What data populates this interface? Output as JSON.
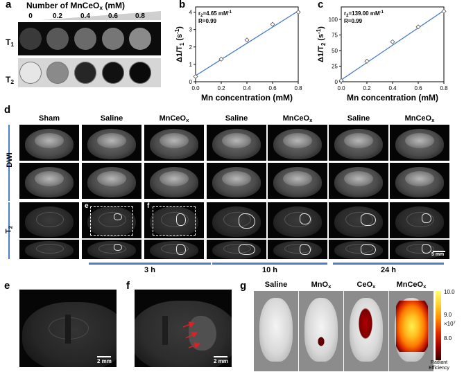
{
  "panels": {
    "a": "a",
    "b": "b",
    "c": "c",
    "d": "d",
    "e": "e",
    "f": "f",
    "g": "g"
  },
  "panel_a": {
    "title_pre": "Number of MnCeO",
    "title_sub": "x",
    "title_post": " (mM)",
    "concentrations": [
      "0",
      "0.2",
      "0.4",
      "0.6",
      "0.8"
    ],
    "t1_label": "T",
    "t1_sub": "1",
    "t2_label": "T",
    "t2_sub": "2",
    "t1_well_colors": [
      "#3a3a3a",
      "#585858",
      "#6a6a6a",
      "#767676",
      "#8a8a8a"
    ],
    "t2_well_colors": [
      "#e6e6e6",
      "#8a8a8a",
      "#262626",
      "#111111",
      "#0a0a0a"
    ]
  },
  "chart_data": [
    {
      "type": "scatter",
      "panel": "b",
      "fit_line": true,
      "x": [
        0,
        0.2,
        0.4,
        0.6,
        0.8
      ],
      "y": [
        0.3,
        1.3,
        2.4,
        3.3,
        4.0
      ],
      "fit": {
        "slope": 4.65,
        "intercept": 0.35
      },
      "annotation_r": "r",
      "annotation_r_sub": "2",
      "annotation_r_val": "=4.65 mM",
      "annotation_r_sup": "-1",
      "annotation_R": "R=0.99",
      "xlabel": "Mn concentration (mM)",
      "ylabel_pre": "Δ1/T",
      "ylabel_sub": "1",
      "ylabel_post": " (s",
      "ylabel_sup": "-1",
      "ylabel_end": ")",
      "xlim": [
        0,
        0.8
      ],
      "ylim": [
        0,
        4.3
      ],
      "xticks": [
        "0.0",
        "0.2",
        "0.4",
        "0.6",
        "0.8"
      ],
      "yticks": [
        "0",
        "1",
        "2",
        "3",
        "4"
      ],
      "line_color": "#4a7ec8"
    },
    {
      "type": "scatter",
      "panel": "c",
      "fit_line": true,
      "x": [
        0,
        0.2,
        0.4,
        0.6,
        0.8
      ],
      "y": [
        2,
        33,
        64,
        88,
        113
      ],
      "fit": {
        "slope": 139.0,
        "intercept": 3
      },
      "annotation_r": "r",
      "annotation_r_sub": "2",
      "annotation_r_val": "=139.00 mM",
      "annotation_r_sup": "-1",
      "annotation_R": "R=0.99",
      "xlabel": "Mn concentration (mM)",
      "ylabel_pre": "Δ1/T",
      "ylabel_sub": "2",
      "ylabel_post": " (s",
      "ylabel_sup": "-1",
      "ylabel_end": ")",
      "xlim": [
        0,
        0.8
      ],
      "ylim": [
        0,
        120
      ],
      "xticks": [
        "0.0",
        "0.2",
        "0.4",
        "0.6",
        "0.8"
      ],
      "yticks": [
        "0",
        "25",
        "50",
        "75",
        "100"
      ],
      "line_color": "#4a7ec8"
    }
  ],
  "panel_d": {
    "columns": [
      {
        "label": "Sham",
        "sub": ""
      },
      {
        "label": "Saline",
        "sub": ""
      },
      {
        "label": "MnCeO",
        "sub": "x"
      },
      {
        "label": "Saline",
        "sub": ""
      },
      {
        "label": "MnCeO",
        "sub": "x"
      },
      {
        "label": "Saline",
        "sub": ""
      },
      {
        "label": "MnCeO",
        "sub": "x"
      }
    ],
    "row_dwi": "DWI",
    "row_t2": "T",
    "row_t2_sub": "2",
    "inset_e": "e",
    "inset_f": "f",
    "times": [
      "3 h",
      "10 h",
      "24 h"
    ],
    "scalebar": "5 mm"
  },
  "panel_e": {
    "scalebar": "2 mm"
  },
  "panel_f": {
    "scalebar": "2 mm"
  },
  "panel_g": {
    "labels": [
      {
        "pre": "Saline",
        "sub": ""
      },
      {
        "pre": "MnO",
        "sub": "x"
      },
      {
        "pre": "CeO",
        "sub": "x"
      },
      {
        "pre": "MnCeO",
        "sub": "x"
      }
    ],
    "colorbar_ticks": [
      "10.0",
      "9.0",
      "8.0"
    ],
    "colorbar_exp": "×10",
    "colorbar_exp_sup": "7",
    "colorbar_title_1": "Radiant",
    "colorbar_title_2": "Efficiency"
  }
}
